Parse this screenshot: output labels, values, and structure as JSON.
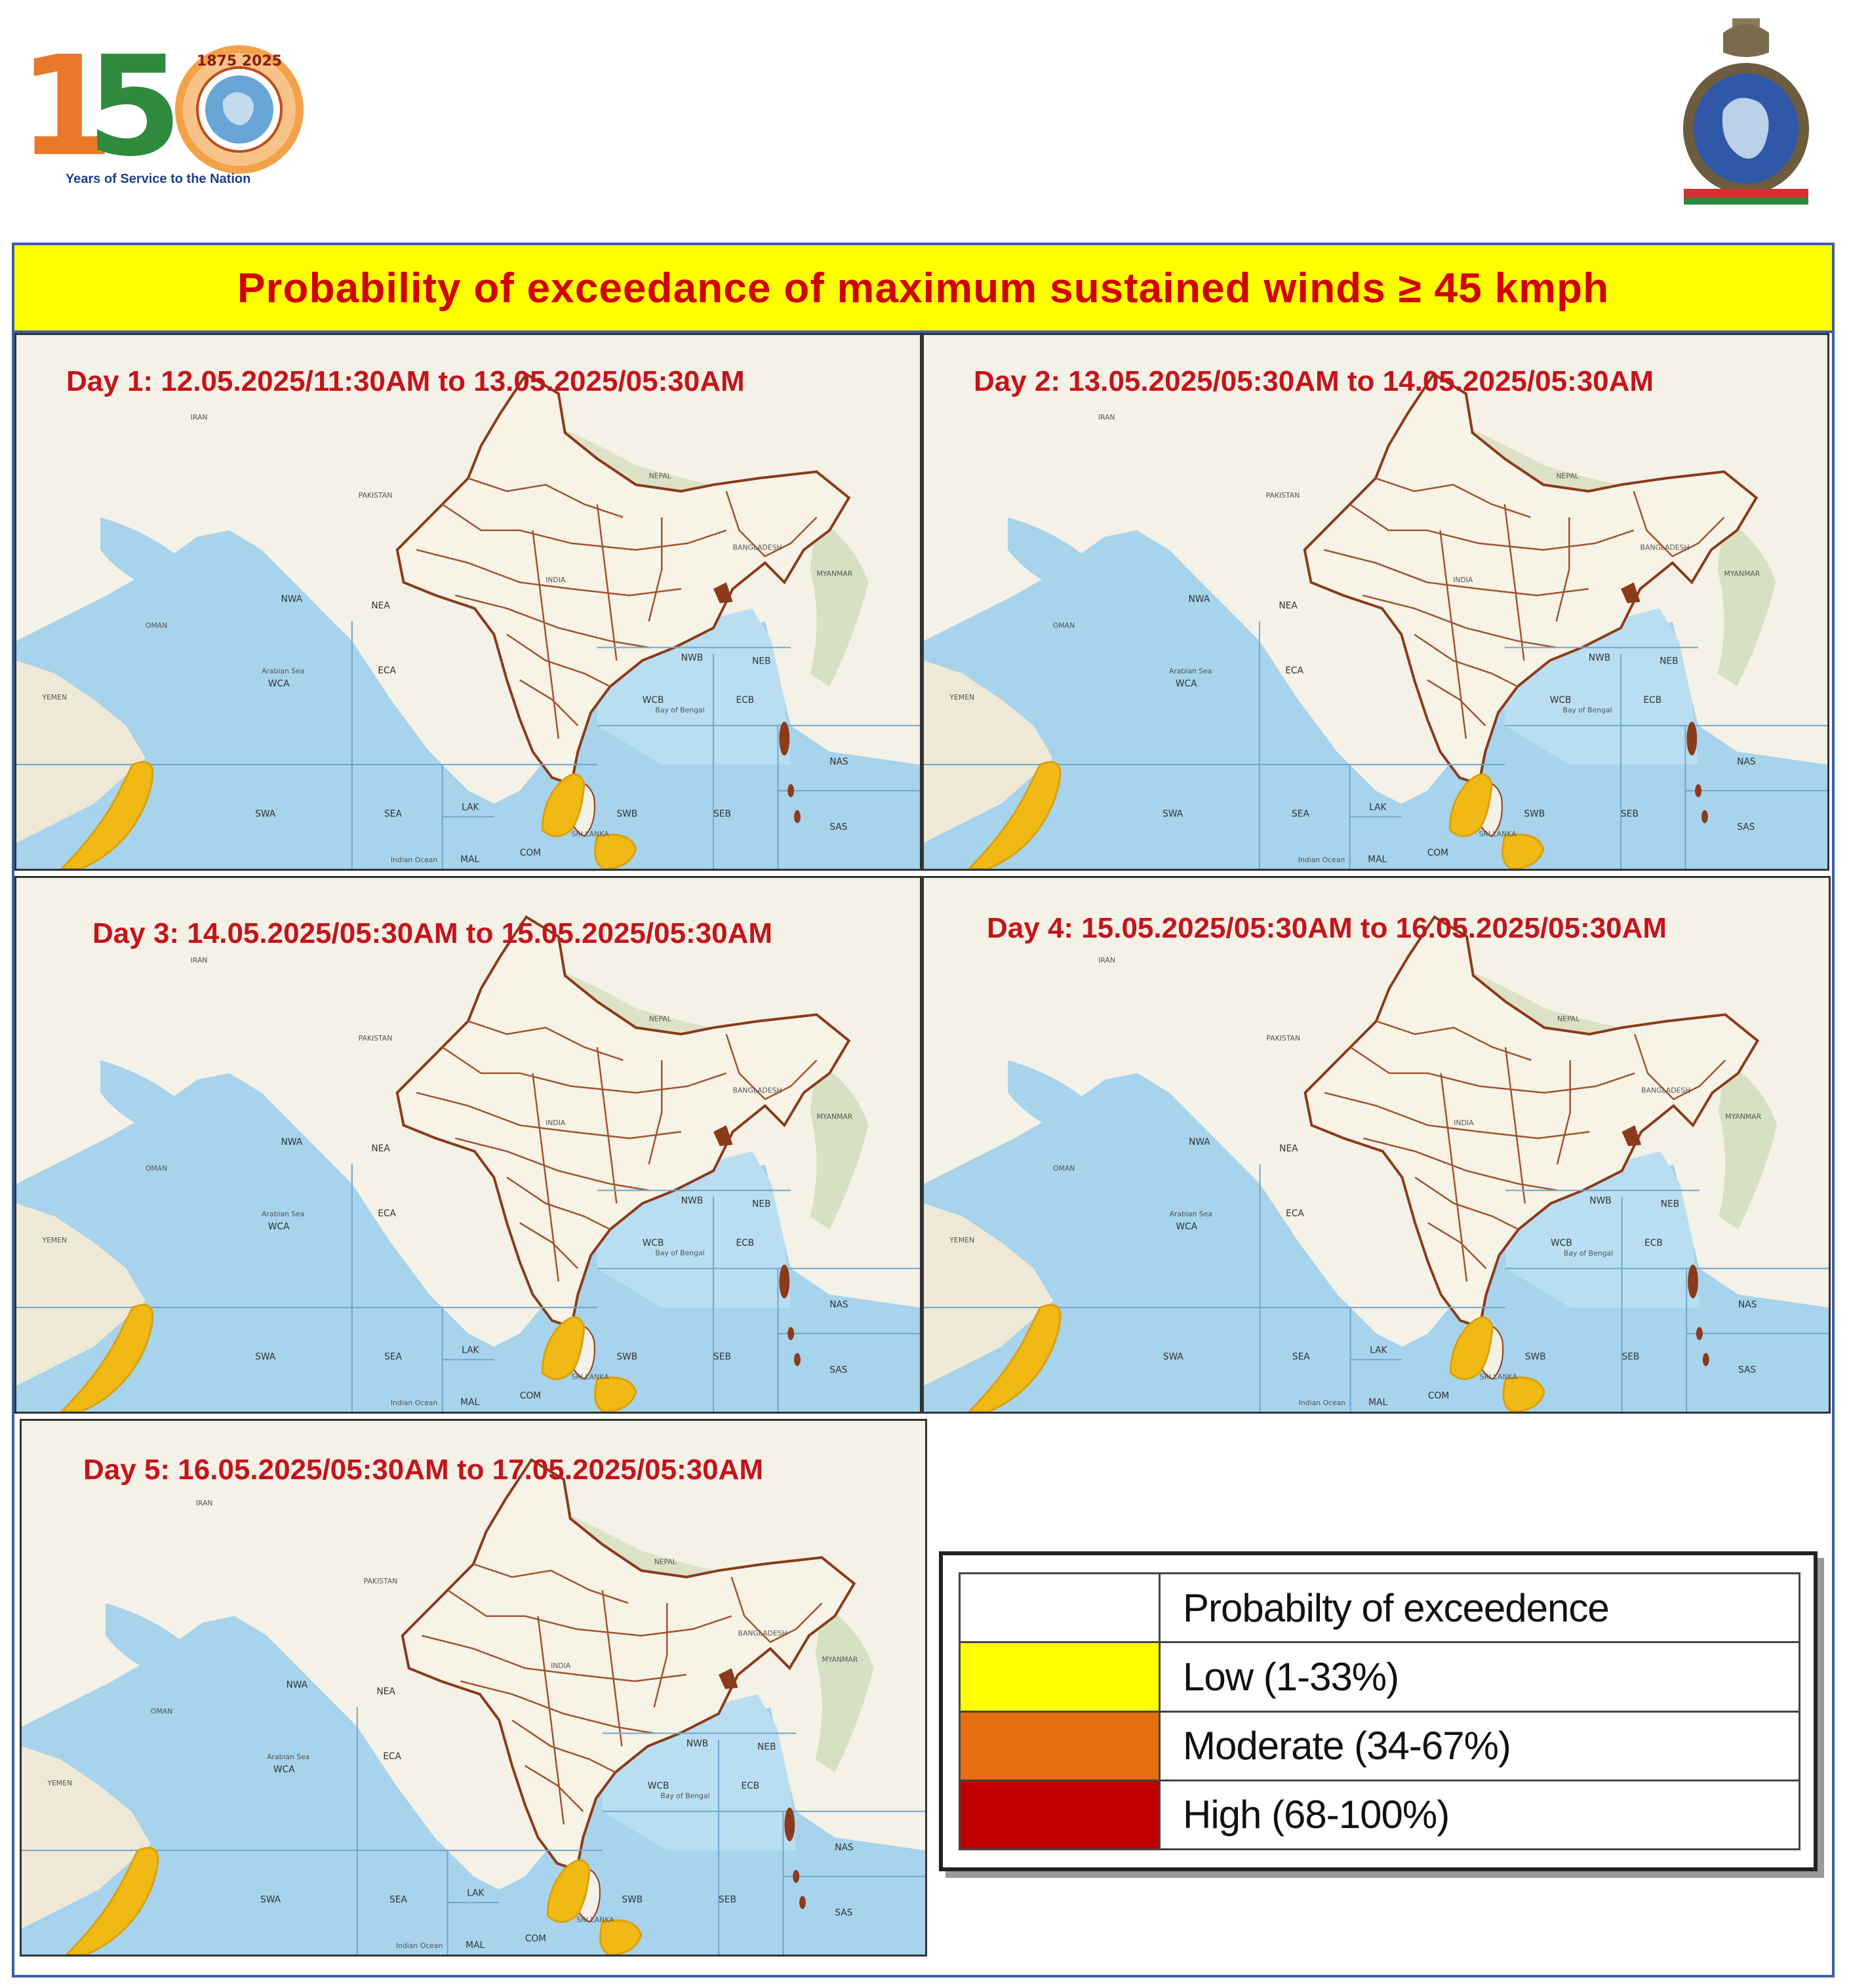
{
  "header": {
    "logo_150_digits": "150",
    "logo_150_tagline": "Years of Service to the Nation",
    "logo_150_seal_text": "1875  2025",
    "emblem": "imd-emblem-icon"
  },
  "title": "Probability  of exceedance of maximum  sustained  winds ≥ 45 kmph",
  "panels": [
    {
      "label": "Day 1: 12.05.2025/11:30AM to 13.05.2025/05:30AM"
    },
    {
      "label": "Day 2: 13.05.2025/05:30AM to 14.05.2025/05:30AM"
    },
    {
      "label": "Day 3:  14.05.2025/05:30AM  to 15.05.2025/05:30AM"
    },
    {
      "label": "Day 4: 15.05.2025/05:30AM to 16.05.2025/05:30AM"
    },
    {
      "label": "Day 5: 16.05.2025/05:30AM to 17.05.2025/05:30AM"
    }
  ],
  "map_labels": {
    "regions": [
      "NWA",
      "NEA",
      "WCA",
      "ECA",
      "SWA",
      "SEA",
      "LAK",
      "MAL",
      "COM",
      "SWB",
      "SEB",
      "WCB",
      "ECB",
      "NWB",
      "NEB",
      "NAS",
      "SAS"
    ],
    "places": [
      "IRAN",
      "PAKISTAN",
      "INDIA",
      "OMAN",
      "YEMEN",
      "NEPAL",
      "BANGLADESH",
      "MYANMAR",
      "SRI LANKA",
      "Arabian Sea",
      "Bay of Bengal",
      "Indian Ocean"
    ]
  },
  "legend": {
    "header": "Probabilty of exceedence",
    "items": [
      {
        "label": "Low (1-33%)",
        "color": "#ffff00"
      },
      {
        "label": "Moderate (34-67%)",
        "color": "#e56f0e"
      },
      {
        "label": "High (68-100%)",
        "color": "#c00000"
      }
    ]
  },
  "colors": {
    "title_text": "#d00000",
    "title_bg": "#ffff00",
    "frame": "#3b5ea8",
    "low_zone_fill": "#f0b915",
    "india_border": "#8b3a1a",
    "ocean": "#a7d3ec",
    "land": "#f4f1e6"
  }
}
